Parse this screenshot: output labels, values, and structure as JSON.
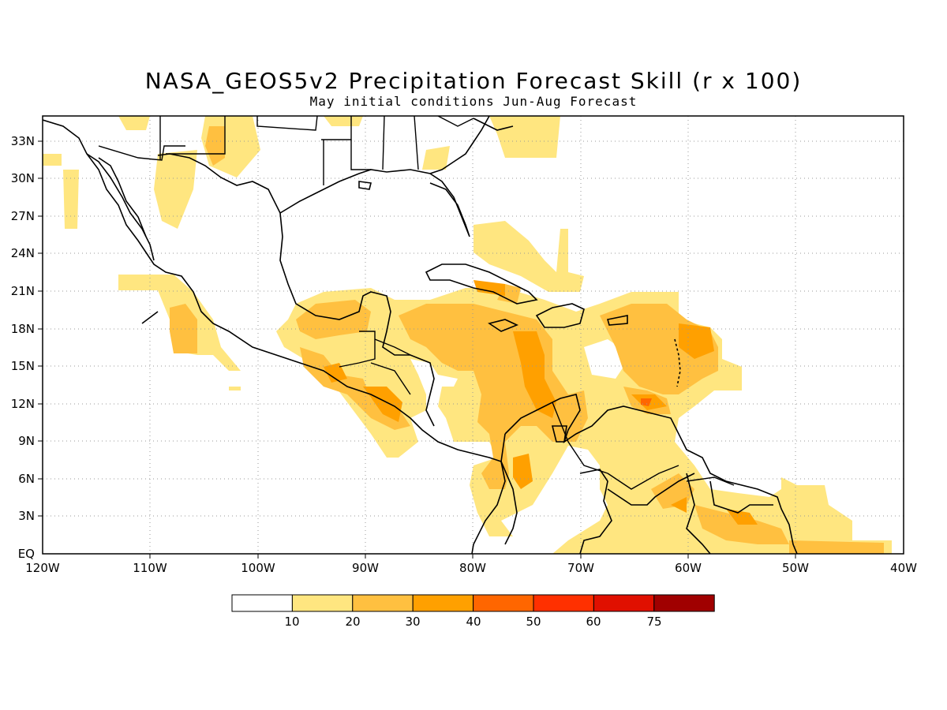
{
  "title": "NASA_GEOS5v2 Precipitation Forecast Skill (r x 100)",
  "subtitle": "May initial conditions  Jun-Aug Forecast",
  "map": {
    "lat_labels": [
      "33N",
      "30N",
      "27N",
      "24N",
      "21N",
      "18N",
      "15N",
      "12N",
      "9N",
      "6N",
      "3N",
      "EQ"
    ],
    "lon_labels": [
      "120W",
      "110W",
      "100W",
      "90W",
      "80W",
      "70W",
      "60W",
      "50W",
      "40W"
    ]
  },
  "colorbar": {
    "labels": [
      "10",
      "20",
      "30",
      "40",
      "50",
      "60",
      "75"
    ],
    "colors": [
      "#ffffff",
      "#ffe680",
      "#ffc040",
      "#ffa000",
      "#ff6600",
      "#ff3000",
      "#e01000",
      "#a00000"
    ]
  },
  "chart_data": {
    "type": "heatmap",
    "title": "NASA_GEOS5v2 Precipitation Forecast Skill (r x 100)",
    "subtitle": "May initial conditions  Jun-Aug Forecast",
    "xlim": [
      -120,
      -40
    ],
    "ylim": [
      0,
      35
    ],
    "x_ticks": [
      "120W",
      "110W",
      "100W",
      "90W",
      "80W",
      "70W",
      "60W",
      "50W",
      "40W"
    ],
    "y_ticks": [
      "EQ",
      "3N",
      "6N",
      "9N",
      "12N",
      "15N",
      "18N",
      "21N",
      "24N",
      "27N",
      "30N",
      "33N"
    ],
    "levels": [
      10,
      20,
      30,
      40,
      50,
      60,
      75
    ],
    "grid": true
  }
}
